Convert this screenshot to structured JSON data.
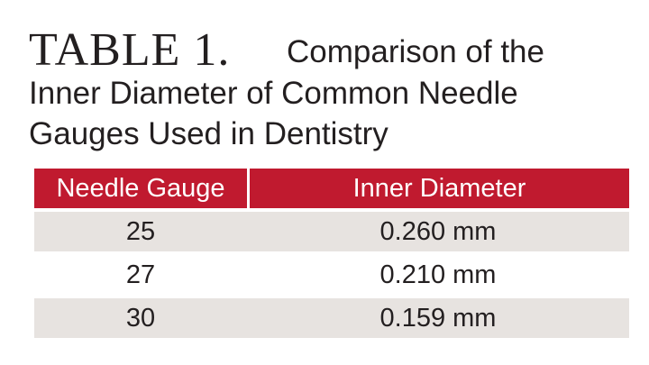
{
  "title": {
    "label": "TABLE 1.",
    "lines": [
      "Comparison of the",
      "Inner Diameter of Common Needle",
      "Gauges Used in Dentistry"
    ]
  },
  "table": {
    "header": [
      "Needle Gauge",
      "Inner Diameter"
    ],
    "rows": [
      [
        "25",
        "0.260 mm"
      ],
      [
        "27",
        "0.210 mm"
      ],
      [
        "30",
        "0.159 mm"
      ]
    ]
  }
}
